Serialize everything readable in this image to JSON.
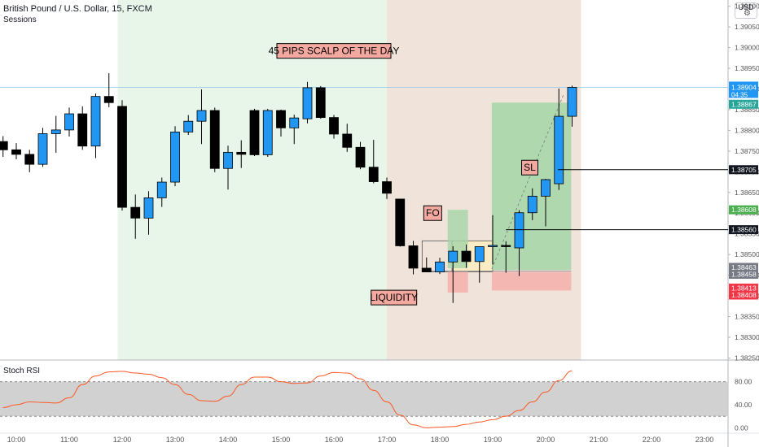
{
  "header": {
    "title": "British Pound / U.S. Dollar, 15, FXCM",
    "indicator": "Sessions",
    "currency": "USD",
    "oscillator_label": "Stoch RSI"
  },
  "colors": {
    "bull": "#2196f3",
    "bear": "#000000",
    "session_green": "#e8f5e9",
    "session_tan": "#efe3da",
    "target_zone": "#a5d6a7",
    "stop_zone": "#f5b7b1",
    "liquidity_box": "#fbecc4",
    "stoch_line": "#ff5722",
    "stoch_band": "#cccccc",
    "label_fill": "#f4a9a0"
  },
  "chart_data": [
    {
      "type": "candlestick",
      "title": "British Pound / U.S. Dollar, 15, FXCM",
      "x_ticks": [
        "10:00",
        "11:00",
        "12:00",
        "13:00",
        "14:00",
        "15:00",
        "16:00",
        "17:00",
        "18:00",
        "19:00",
        "20:00",
        "21:00",
        "22:00",
        "23:00"
      ],
      "y_ticks": [
        1.3825,
        1.383,
        1.3835,
        1.384,
        1.3845,
        1.385,
        1.3855,
        1.386,
        1.3865,
        1.387,
        1.3875,
        1.388,
        1.3885,
        1.389,
        1.3895,
        1.39,
        1.3905,
        1.391
      ],
      "ylim": [
        1.38245,
        1.39115
      ],
      "candles": [
        {
          "t": "09:45",
          "o": 1.38773,
          "h": 1.38786,
          "l": 1.38736,
          "c": 1.38753
        },
        {
          "t": "10:00",
          "o": 1.38753,
          "h": 1.38769,
          "l": 1.3873,
          "c": 1.38742
        },
        {
          "t": "10:15",
          "o": 1.38742,
          "h": 1.38753,
          "l": 1.38699,
          "c": 1.38718
        },
        {
          "t": "10:30",
          "o": 1.38718,
          "h": 1.38806,
          "l": 1.38712,
          "c": 1.38792
        },
        {
          "t": "10:45",
          "o": 1.38792,
          "h": 1.38835,
          "l": 1.38746,
          "c": 1.38801
        },
        {
          "t": "11:00",
          "o": 1.38801,
          "h": 1.38855,
          "l": 1.38785,
          "c": 1.3884
        },
        {
          "t": "11:15",
          "o": 1.3884,
          "h": 1.38858,
          "l": 1.38753,
          "c": 1.38762
        },
        {
          "t": "11:30",
          "o": 1.38762,
          "h": 1.38889,
          "l": 1.38733,
          "c": 1.38882
        },
        {
          "t": "11:45",
          "o": 1.38882,
          "h": 1.38938,
          "l": 1.38856,
          "c": 1.38867
        },
        {
          "t": "12:00",
          "o": 1.38858,
          "h": 1.38873,
          "l": 1.38606,
          "c": 1.38614
        },
        {
          "t": "12:15",
          "o": 1.38614,
          "h": 1.38645,
          "l": 1.38538,
          "c": 1.38588
        },
        {
          "t": "12:30",
          "o": 1.38588,
          "h": 1.38653,
          "l": 1.38548,
          "c": 1.38637
        },
        {
          "t": "12:45",
          "o": 1.38637,
          "h": 1.38686,
          "l": 1.38615,
          "c": 1.38675
        },
        {
          "t": "13:00",
          "o": 1.38675,
          "h": 1.3881,
          "l": 1.38665,
          "c": 1.38796
        },
        {
          "t": "13:15",
          "o": 1.38796,
          "h": 1.38837,
          "l": 1.38789,
          "c": 1.38822
        },
        {
          "t": "13:30",
          "o": 1.38822,
          "h": 1.38899,
          "l": 1.38767,
          "c": 1.38848
        },
        {
          "t": "13:45",
          "o": 1.38848,
          "h": 1.38855,
          "l": 1.38699,
          "c": 1.38708
        },
        {
          "t": "14:00",
          "o": 1.38708,
          "h": 1.38763,
          "l": 1.38657,
          "c": 1.38747
        },
        {
          "t": "14:15",
          "o": 1.38747,
          "h": 1.38776,
          "l": 1.38709,
          "c": 1.38742
        },
        {
          "t": "14:30",
          "o": 1.38848,
          "h": 1.38852,
          "l": 1.38738,
          "c": 1.38741
        },
        {
          "t": "14:45",
          "o": 1.38741,
          "h": 1.38852,
          "l": 1.38736,
          "c": 1.38848
        },
        {
          "t": "15:00",
          "o": 1.38848,
          "h": 1.3885,
          "l": 1.38785,
          "c": 1.38806
        },
        {
          "t": "15:15",
          "o": 1.38806,
          "h": 1.38838,
          "l": 1.38767,
          "c": 1.3883
        },
        {
          "t": "15:30",
          "o": 1.38828,
          "h": 1.38917,
          "l": 1.38817,
          "c": 1.38903
        },
        {
          "t": "15:45",
          "o": 1.38903,
          "h": 1.38907,
          "l": 1.38828,
          "c": 1.38831
        },
        {
          "t": "16:00",
          "o": 1.38831,
          "h": 1.38837,
          "l": 1.3878,
          "c": 1.38791
        },
        {
          "t": "16:15",
          "o": 1.38791,
          "h": 1.38816,
          "l": 1.38748,
          "c": 1.38759
        },
        {
          "t": "16:30",
          "o": 1.38759,
          "h": 1.38772,
          "l": 1.38706,
          "c": 1.38711
        },
        {
          "t": "16:45",
          "o": 1.38711,
          "h": 1.38777,
          "l": 1.38672,
          "c": 1.38676
        },
        {
          "t": "17:00",
          "o": 1.38676,
          "h": 1.38686,
          "l": 1.38634,
          "c": 1.38648
        },
        {
          "t": "17:15",
          "o": 1.38634,
          "h": 1.38633,
          "l": 1.38519,
          "c": 1.38521
        },
        {
          "t": "17:30",
          "o": 1.38521,
          "h": 1.38533,
          "l": 1.38452,
          "c": 1.38467
        },
        {
          "t": "17:45",
          "o": 1.38467,
          "h": 1.38493,
          "l": 1.38458,
          "c": 1.38458
        },
        {
          "t": "18:00",
          "o": 1.38458,
          "h": 1.38492,
          "l": 1.38453,
          "c": 1.38482
        },
        {
          "t": "18:15",
          "o": 1.38482,
          "h": 1.3852,
          "l": 1.38383,
          "c": 1.38508
        },
        {
          "t": "18:30",
          "o": 1.38508,
          "h": 1.38524,
          "l": 1.38468,
          "c": 1.38483
        },
        {
          "t": "18:45",
          "o": 1.38483,
          "h": 1.38513,
          "l": 1.38432,
          "c": 1.38519
        },
        {
          "t": "19:00",
          "o": 1.38519,
          "h": 1.38595,
          "l": 1.38476,
          "c": 1.38522
        },
        {
          "t": "19:15",
          "o": 1.38522,
          "h": 1.38532,
          "l": 1.38456,
          "c": 1.38519
        },
        {
          "t": "19:30",
          "o": 1.38516,
          "h": 1.38607,
          "l": 1.38448,
          "c": 1.38601
        },
        {
          "t": "19:45",
          "o": 1.38601,
          "h": 1.3866,
          "l": 1.38583,
          "c": 1.38641
        },
        {
          "t": "20:00",
          "o": 1.38641,
          "h": 1.38683,
          "l": 1.38568,
          "c": 1.38681
        },
        {
          "t": "20:15",
          "o": 1.38671,
          "h": 1.38901,
          "l": 1.38656,
          "c": 1.38834
        },
        {
          "t": "20:30",
          "o": 1.38834,
          "h": 1.38908,
          "l": 1.38809,
          "c": 1.38904
        }
      ],
      "price_labels": [
        {
          "value": "1.38904",
          "sub": "04:35",
          "color": "#2196f3"
        },
        {
          "value": "1.38867",
          "color": "#26a69a"
        },
        {
          "value": "1.38705",
          "color": "#131722"
        },
        {
          "value": "1.38608",
          "color": "#4caf50"
        },
        {
          "value": "1.38560",
          "color": "#131722"
        },
        {
          "value": "1.38463",
          "color": "#787b86"
        },
        {
          "value": "1.38458",
          "color": "#787b86"
        },
        {
          "value": "1.38413",
          "color": "#f23645"
        },
        {
          "value": "1.38408",
          "color": "#f23645"
        }
      ],
      "annotations": [
        "45 PIPS SCALP OF THE DAY",
        "FO",
        "SL",
        "LIQUIDITY"
      ]
    },
    {
      "type": "line",
      "title": "Stoch RSI",
      "y_ticks": [
        "80.00",
        "40.00",
        "0.00"
      ],
      "ylim": [
        -8,
        112
      ],
      "band": [
        20,
        80
      ],
      "x": [
        "09:45",
        "10:00",
        "10:15",
        "10:30",
        "10:45",
        "11:00",
        "11:15",
        "11:30",
        "11:45",
        "12:00",
        "12:15",
        "12:30",
        "12:45",
        "13:00",
        "13:15",
        "13:30",
        "13:45",
        "14:00",
        "14:15",
        "14:30",
        "14:45",
        "15:00",
        "15:15",
        "15:30",
        "15:45",
        "16:00",
        "16:15",
        "16:30",
        "16:45",
        "17:00",
        "17:15",
        "17:30",
        "17:45",
        "18:00",
        "18:15",
        "18:30",
        "18:45",
        "19:00",
        "19:15",
        "19:30",
        "19:45",
        "20:00",
        "20:15",
        "20:30"
      ],
      "values": [
        35,
        40,
        45,
        44,
        43,
        52,
        75,
        90,
        97,
        98,
        95,
        93,
        87,
        75,
        58,
        47,
        46,
        55,
        75,
        88,
        88,
        80,
        77,
        78,
        90,
        96,
        95,
        85,
        65,
        45,
        22,
        5,
        0,
        1,
        2,
        6,
        10,
        14,
        20,
        30,
        45,
        62,
        82,
        99
      ]
    }
  ]
}
